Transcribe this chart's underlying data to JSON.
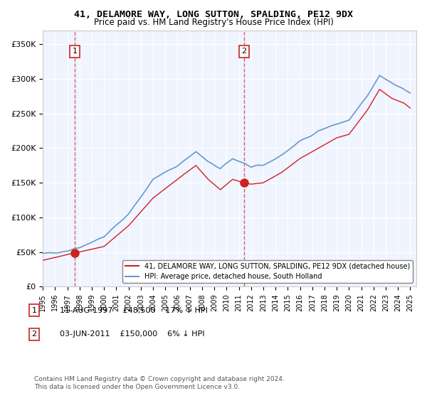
{
  "title": "41, DELAMORE WAY, LONG SUTTON, SPALDING, PE12 9DX",
  "subtitle": "Price paid vs. HM Land Registry's House Price Index (HPI)",
  "xlabel": "",
  "ylabel": "",
  "ylim": [
    0,
    370000
  ],
  "yticks": [
    0,
    50000,
    100000,
    150000,
    200000,
    250000,
    300000,
    350000
  ],
  "ytick_labels": [
    "£0",
    "£50K",
    "£100K",
    "£150K",
    "£200K",
    "£250K",
    "£300K",
    "£350K"
  ],
  "hpi_color": "#6699cc",
  "price_color": "#cc2222",
  "background_color": "#f0f4ff",
  "grid_color": "#ffffff",
  "sale1_date": 1997.61,
  "sale1_price": 48500,
  "sale1_label": "1",
  "sale1_text": "11-AUG-1997    £48,500    17% ↓ HPI",
  "sale2_date": 2011.42,
  "sale2_price": 150000,
  "sale2_label": "2",
  "sale2_text": "03-JUN-2011    £150,000    6% ↓ HPI",
  "legend_label1": "41, DELAMORE WAY, LONG SUTTON, SPALDING, PE12 9DX (detached house)",
  "legend_label2": "HPI: Average price, detached house, South Holland",
  "footer": "Contains HM Land Registry data © Crown copyright and database right 2024.\nThis data is licensed under the Open Government Licence v3.0."
}
